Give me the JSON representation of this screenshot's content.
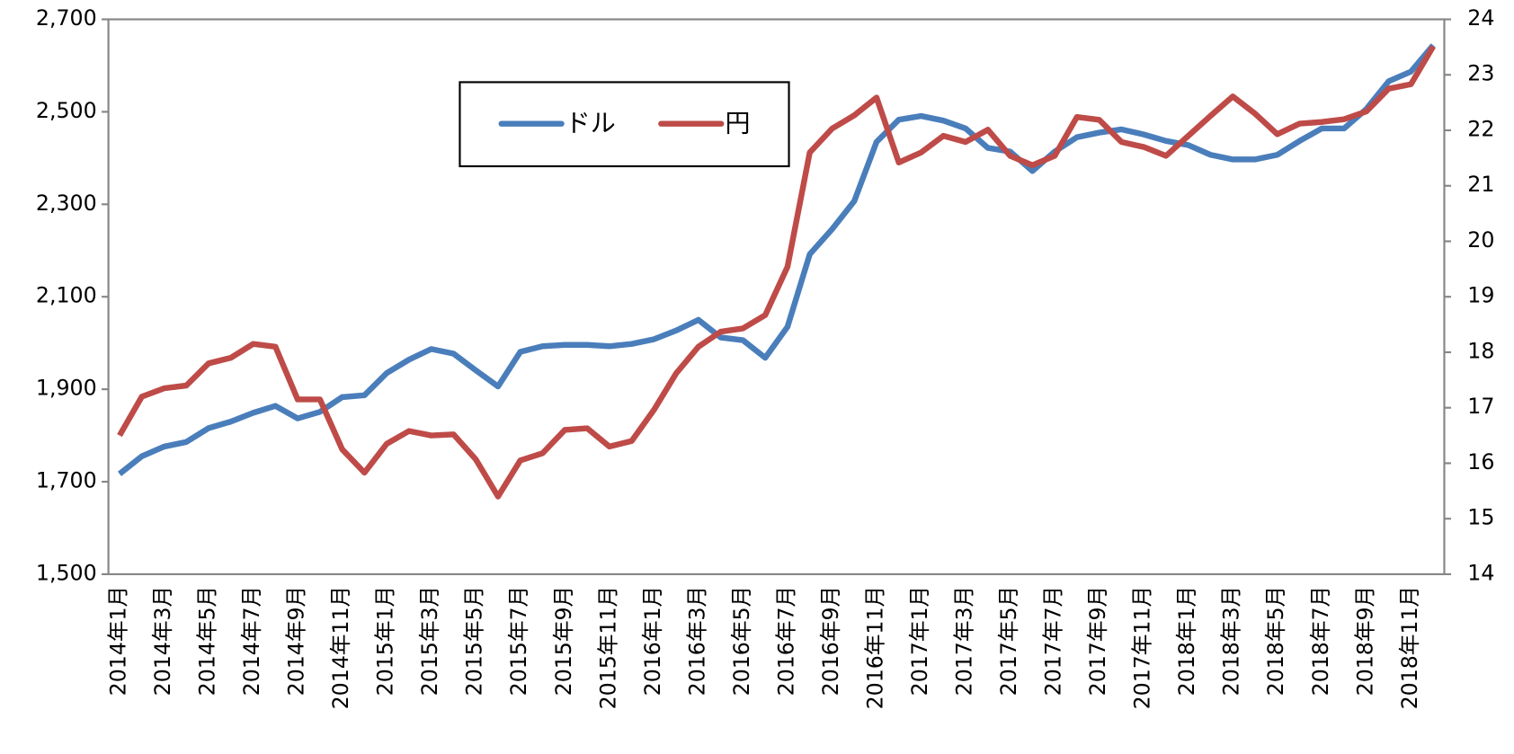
{
  "chart_data": {
    "type": "line",
    "categories": [
      "2014年1月",
      null,
      "2014年3月",
      null,
      "2014年5月",
      null,
      "2014年7月",
      null,
      "2014年9月",
      null,
      "2014年11月",
      null,
      "2015年1月",
      null,
      "2015年3月",
      null,
      "2015年5月",
      null,
      "2015年7月",
      null,
      "2015年9月",
      null,
      "2015年11月",
      null,
      "2016年1月",
      null,
      "2016年3月",
      null,
      "2016年5月",
      null,
      "2016年7月",
      null,
      "2016年9月",
      null,
      "2016年11月",
      null,
      "2017年1月",
      null,
      "2017年3月",
      null,
      "2017年5月",
      null,
      "2017年7月",
      null,
      "2017年9月",
      null,
      "2017年11月",
      null,
      "2018年1月",
      null,
      "2018年3月",
      null,
      "2018年5月",
      null,
      "2018年7月",
      null,
      "2018年9月",
      null,
      "2018年11月",
      null
    ],
    "series": [
      {
        "name": "ドル",
        "color": "#4a7ebb",
        "values": [
          1717,
          1755,
          1776,
          1786,
          1816,
          1830,
          1849,
          1864,
          1837,
          1851,
          1883,
          1887,
          1935,
          1964,
          1987,
          1977,
          1941,
          1906,
          1981,
          1993,
          1996,
          1996,
          1993,
          1998,
          2008,
          2027,
          2050,
          2012,
          2006,
          1968,
          2035,
          2192,
          2246,
          2307,
          2435,
          2483,
          2491,
          2481,
          2464,
          2422,
          2414,
          2372,
          2414,
          2445,
          2455,
          2462,
          2451,
          2437,
          2428,
          2407,
          2397,
          2397,
          2407,
          2437,
          2464,
          2464,
          2506,
          2566,
          2587,
          2644
        ]
      },
      {
        "name": "円",
        "color": "#be4b48",
        "axis": "y2",
        "values": [
          16.5,
          17.2,
          17.35,
          17.4,
          17.8,
          17.9,
          18.15,
          18.1,
          17.15,
          17.15,
          16.25,
          15.83,
          16.35,
          16.58,
          16.5,
          16.52,
          16.07,
          15.4,
          16.05,
          16.18,
          16.6,
          16.63,
          16.3,
          16.4,
          16.96,
          17.62,
          18.1,
          18.37,
          18.43,
          18.67,
          19.54,
          21.6,
          22.03,
          22.27,
          22.59,
          21.42,
          21.6,
          21.9,
          21.79,
          22.01,
          21.54,
          21.37,
          21.54,
          22.24,
          22.19,
          21.79,
          21.7,
          21.54,
          21.9,
          22.26,
          22.61,
          22.3,
          21.93,
          22.12,
          22.15,
          22.2,
          22.34,
          22.75,
          22.83,
          23.51
        ]
      }
    ],
    "ylim": [
      1500,
      2700
    ],
    "yticks": [
      {
        "value": 1500,
        "label": "1,500"
      },
      {
        "value": 1700,
        "label": "1,700"
      },
      {
        "value": 1900,
        "label": "1,900"
      },
      {
        "value": 2100,
        "label": "2,100"
      },
      {
        "value": 2300,
        "label": "2,300"
      },
      {
        "value": 2500,
        "label": "2,500"
      },
      {
        "value": 2700,
        "label": "2,700"
      }
    ],
    "y2lim": [
      14,
      24
    ],
    "y2ticks": [
      14,
      15,
      16,
      17,
      18,
      19,
      20,
      21,
      22,
      23,
      24
    ],
    "legend": "top"
  }
}
